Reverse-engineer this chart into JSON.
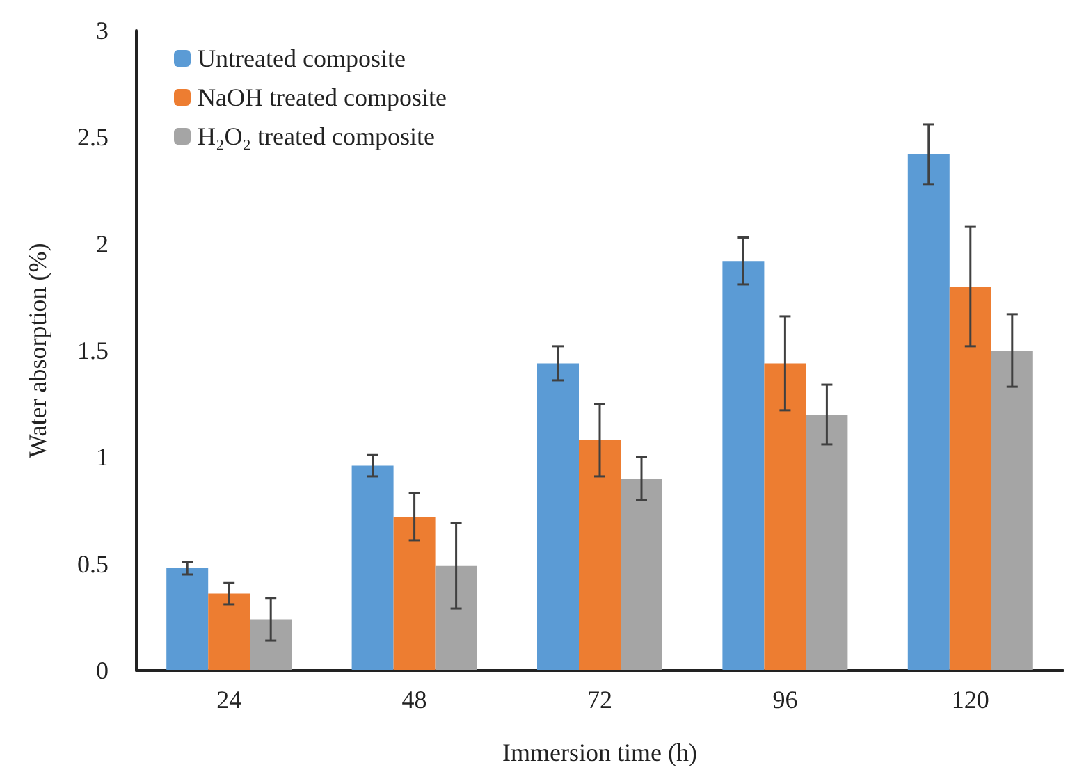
{
  "chart_data": {
    "type": "bar",
    "xlabel": "Immersion time (h)",
    "ylabel": "Water absorption (%)",
    "categories": [
      "24",
      "48",
      "72",
      "96",
      "120"
    ],
    "series": [
      {
        "name": "Untreated composite",
        "color": "#5b9bd5",
        "values": [
          0.48,
          0.96,
          1.44,
          1.92,
          2.42
        ],
        "errors": [
          0.03,
          0.05,
          0.08,
          0.11,
          0.14
        ]
      },
      {
        "name": "NaOH treated composite",
        "color": "#ed7d31",
        "values": [
          0.36,
          0.72,
          1.08,
          1.44,
          1.8
        ],
        "errors": [
          0.05,
          0.11,
          0.17,
          0.22,
          0.28
        ]
      },
      {
        "name": "H₂O₂ treated composite",
        "color": "#a5a5a5",
        "values": [
          0.24,
          0.49,
          0.9,
          1.2,
          1.5
        ],
        "errors": [
          0.1,
          0.2,
          0.1,
          0.14,
          0.17
        ]
      }
    ],
    "ylim": [
      0,
      3
    ],
    "yticks": [
      0,
      0.5,
      1,
      1.5,
      2,
      2.5,
      3
    ],
    "grid": false,
    "legend": "top left"
  }
}
